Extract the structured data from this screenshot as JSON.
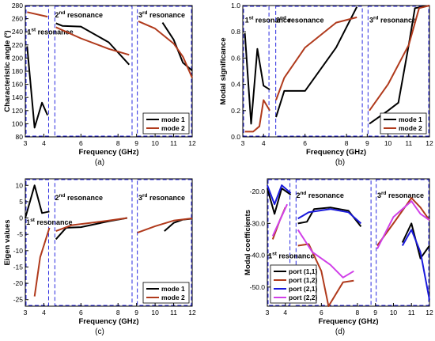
{
  "chart_data": [
    {
      "type": "line",
      "panel_label": "(a)",
      "xlabel": "Frequency (GHz)",
      "ylabel": "Characteristic angle (º)",
      "xlim": [
        3,
        12
      ],
      "ylim": [
        80,
        280
      ],
      "xticks": [
        3,
        4,
        6,
        8,
        9,
        10,
        11,
        12
      ],
      "yticks": [
        80,
        100,
        120,
        140,
        160,
        180,
        200,
        220,
        240,
        260,
        280
      ],
      "regions": [
        {
          "x0": 3.0,
          "x1": 4.3,
          "label": "1",
          "sup": "st",
          "rest": " resonance",
          "lx": 3.1,
          "ly": 236
        },
        {
          "x0": 4.55,
          "x1": 8.8,
          "label": "2",
          "sup": "nd",
          "rest": " resonance",
          "lx": 4.6,
          "ly": 262
        },
        {
          "x0": 9.0,
          "x1": 12.0,
          "label": "3",
          "sup": "rd",
          "rest": " resonance",
          "lx": 9.1,
          "ly": 262
        }
      ],
      "legend": "lower-right",
      "series": [
        {
          "name": "mode 1",
          "color": "#000000",
          "segments": [
            [
              [
                3.1,
                218
              ],
              [
                3.5,
                94
              ],
              [
                3.9,
                132
              ],
              [
                4.2,
                113
              ]
            ],
            [
              [
                4.65,
                253
              ],
              [
                5.0,
                249
              ],
              [
                6.0,
                248
              ],
              [
                7.5,
                224
              ],
              [
                8.6,
                190
              ]
            ],
            [
              [
                10.4,
                254
              ],
              [
                11.0,
                228
              ],
              [
                11.5,
                193
              ],
              [
                12.0,
                181
              ]
            ]
          ]
        },
        {
          "name": "mode 2",
          "color": "#b03a1c",
          "segments": [
            [
              [
                3.1,
                270
              ],
              [
                4.2,
                263
              ]
            ],
            [
              [
                4.65,
                247
              ],
              [
                6.0,
                230
              ],
              [
                7.5,
                214
              ],
              [
                8.6,
                205
              ]
            ],
            [
              [
                9.1,
                256
              ],
              [
                10.0,
                245
              ],
              [
                11.0,
                222
              ],
              [
                11.5,
                202
              ],
              [
                12.0,
                170
              ]
            ]
          ]
        }
      ]
    },
    {
      "type": "line",
      "panel_label": "(b)",
      "xlabel": "Frequency (GHz)",
      "ylabel": "Modal significance",
      "xlim": [
        3,
        12
      ],
      "ylim": [
        0,
        1
      ],
      "xticks": [
        3,
        4,
        6,
        8,
        9,
        10,
        11,
        12
      ],
      "yticks": [
        0.0,
        0.2,
        0.4,
        0.6,
        0.8,
        1.0
      ],
      "regions": [
        {
          "x0": 3.0,
          "x1": 4.3,
          "label": "1",
          "sup": "st",
          "rest": " resonance",
          "lx": 3.1,
          "ly": 0.87
        },
        {
          "x0": 4.55,
          "x1": 8.8,
          "label": "2",
          "sup": "nd",
          "rest": " resonance",
          "lx": 4.6,
          "ly": 0.87
        },
        {
          "x0": 9.0,
          "x1": 12.0,
          "label": "3",
          "sup": "rd",
          "rest": " resonance",
          "lx": 9.1,
          "ly": 0.87
        }
      ],
      "legend": "lower-right",
      "series": [
        {
          "name": "mode 1",
          "color": "#000000",
          "segments": [
            [
              [
                3.1,
                0.79
              ],
              [
                3.4,
                0.1
              ],
              [
                3.7,
                0.67
              ],
              [
                4.0,
                0.39
              ],
              [
                4.3,
                0.36
              ]
            ],
            [
              [
                4.6,
                0.15
              ],
              [
                5.0,
                0.35
              ],
              [
                6.0,
                0.35
              ],
              [
                7.5,
                0.68
              ],
              [
                8.5,
                0.99
              ]
            ],
            [
              [
                9.1,
                0.1
              ],
              [
                10.0,
                0.2
              ],
              [
                10.5,
                0.26
              ],
              [
                11.0,
                0.7
              ],
              [
                11.3,
                0.98
              ],
              [
                12.0,
                1.0
              ]
            ]
          ]
        },
        {
          "name": "mode 2",
          "color": "#b03a1c",
          "segments": [
            [
              [
                3.1,
                0.04
              ],
              [
                3.5,
                0.04
              ],
              [
                3.8,
                0.08
              ],
              [
                4.0,
                0.28
              ],
              [
                4.3,
                0.2
              ]
            ],
            [
              [
                4.6,
                0.28
              ],
              [
                5.0,
                0.45
              ],
              [
                6.0,
                0.68
              ],
              [
                7.5,
                0.87
              ],
              [
                8.5,
                0.91
              ]
            ],
            [
              [
                9.1,
                0.2
              ],
              [
                10.0,
                0.4
              ],
              [
                11.0,
                0.7
              ],
              [
                11.5,
                0.98
              ],
              [
                12.0,
                1.0
              ]
            ]
          ]
        }
      ]
    },
    {
      "type": "line",
      "panel_label": "(c)",
      "xlabel": "Frequency (GHz)",
      "ylabel": "Eigen values",
      "xlim": [
        3,
        12
      ],
      "ylim": [
        -27,
        12
      ],
      "xticks": [
        3,
        4,
        6,
        8,
        9,
        10,
        11,
        12
      ],
      "yticks": [
        -25,
        -20,
        -15,
        -10,
        -5,
        0,
        5,
        10
      ],
      "regions": [
        {
          "x0": 3.0,
          "x1": 4.3,
          "label": "1",
          "sup": "st",
          "rest": " resonance",
          "lx": 3.05,
          "ly": -2
        },
        {
          "x0": 4.55,
          "x1": 8.8,
          "label": "2",
          "sup": "nd",
          "rest": " resonance",
          "lx": 4.6,
          "ly": 5.5
        },
        {
          "x0": 9.0,
          "x1": 12.0,
          "label": "3",
          "sup": "rd",
          "rest": " resonance",
          "lx": 9.1,
          "ly": 5.5
        }
      ],
      "legend": "lower-right",
      "series": [
        {
          "name": "mode 1",
          "color": "#000000",
          "segments": [
            [
              [
                3.0,
                0.0
              ],
              [
                3.5,
                10.0
              ],
              [
                3.9,
                1.5
              ],
              [
                4.3,
                2.0
              ]
            ],
            [
              [
                4.65,
                -6.5
              ],
              [
                5.2,
                -3.0
              ],
              [
                6.0,
                -2.8
              ],
              [
                7.5,
                -1.0
              ],
              [
                8.5,
                0.0
              ]
            ],
            [
              [
                10.5,
                -4.0
              ],
              [
                11.0,
                -1.5
              ],
              [
                11.5,
                -0.5
              ],
              [
                12.0,
                -0.2
              ]
            ]
          ]
        },
        {
          "name": "mode 2",
          "color": "#b03a1c",
          "segments": [
            [
              [
                3.5,
                -24.0
              ],
              [
                3.8,
                -12.0
              ],
              [
                4.3,
                -3.0
              ]
            ],
            [
              [
                4.65,
                -4.0
              ],
              [
                5.5,
                -2.2
              ],
              [
                6.5,
                -1.5
              ],
              [
                7.5,
                -0.8
              ],
              [
                8.5,
                0.0
              ]
            ],
            [
              [
                9.05,
                -4.5
              ],
              [
                10.0,
                -2.5
              ],
              [
                11.0,
                -0.8
              ],
              [
                12.0,
                -0.1
              ]
            ]
          ]
        }
      ]
    },
    {
      "type": "line",
      "panel_label": "(d)",
      "xlabel": "Frequency (GHz)",
      "ylabel": "Modal coefficients",
      "xlim": [
        3,
        12
      ],
      "ylim": [
        -56,
        -16
      ],
      "xticks": [
        3,
        4,
        6,
        8,
        9,
        10,
        11,
        12
      ],
      "yticks": [
        -50,
        -40,
        -30,
        -20
      ],
      "regions": [
        {
          "x0": 3.0,
          "x1": 4.3,
          "label": "1",
          "sup": "st",
          "rest": " resonance",
          "lx": 3.05,
          "ly": -41
        },
        {
          "x0": 4.55,
          "x1": 8.8,
          "label": "2",
          "sup": "nd",
          "rest": " resonance",
          "lx": 4.6,
          "ly": -22
        },
        {
          "x0": 9.0,
          "x1": 12.0,
          "label": "3",
          "sup": "rd",
          "rest": " resonance",
          "lx": 9.1,
          "ly": -22
        }
      ],
      "legend": "lower-left",
      "series": [
        {
          "name": "port (1,1)",
          "color": "#000000",
          "segments": [
            [
              [
                3.0,
                -19.0
              ],
              [
                3.4,
                -27.0
              ],
              [
                3.8,
                -19.0
              ],
              [
                4.3,
                -21.0
              ]
            ],
            [
              [
                4.7,
                -30.0
              ],
              [
                5.2,
                -29.5
              ],
              [
                5.6,
                -25.5
              ],
              [
                6.5,
                -25.0
              ],
              [
                7.5,
                -26.0
              ],
              [
                8.2,
                -31.0
              ]
            ],
            [
              [
                10.5,
                -36.0
              ],
              [
                11.0,
                -30.0
              ],
              [
                11.5,
                -41.0
              ],
              [
                12.0,
                -37.0
              ]
            ]
          ]
        },
        {
          "name": "port (1,2)",
          "color": "#b03a1c",
          "segments": [
            [
              [
                3.3,
                -35.0
              ],
              [
                3.7,
                -29.0
              ],
              [
                4.0,
                -25.0
              ]
            ],
            [
              [
                4.7,
                -37.0
              ],
              [
                5.3,
                -36.5
              ],
              [
                6.0,
                -45.0
              ],
              [
                6.4,
                -56.0
              ],
              [
                7.2,
                -48.5
              ],
              [
                7.8,
                -48.0
              ]
            ],
            [
              [
                9.1,
                -37.0
              ],
              [
                10.0,
                -30.0
              ],
              [
                11.0,
                -22.0
              ],
              [
                11.5,
                -25.0
              ],
              [
                12.0,
                -29.0
              ]
            ]
          ]
        },
        {
          "name": "port (2,1)",
          "color": "#1a1adc",
          "segments": [
            [
              [
                3.0,
                -18.0
              ],
              [
                3.4,
                -24.0
              ],
              [
                3.8,
                -18.0
              ],
              [
                4.3,
                -20.5
              ]
            ],
            [
              [
                4.7,
                -28.5
              ],
              [
                5.3,
                -26.5
              ],
              [
                6.5,
                -25.5
              ],
              [
                7.5,
                -26.5
              ],
              [
                8.2,
                -30.0
              ]
            ],
            [
              [
                10.5,
                -37.0
              ],
              [
                11.0,
                -32.0
              ],
              [
                11.5,
                -39.0
              ],
              [
                12.0,
                -54.0
              ]
            ]
          ]
        },
        {
          "name": "port (2,2)",
          "color": "#d040e8",
          "segments": [
            [
              [
                3.3,
                -34.0
              ],
              [
                3.7,
                -29.0
              ],
              [
                4.1,
                -24.0
              ]
            ],
            [
              [
                4.7,
                -32.0
              ],
              [
                5.5,
                -39.0
              ],
              [
                6.5,
                -43.0
              ],
              [
                7.2,
                -47.0
              ],
              [
                7.8,
                -45.0
              ]
            ],
            [
              [
                9.1,
                -38.0
              ],
              [
                10.0,
                -28.0
              ],
              [
                11.0,
                -23.0
              ],
              [
                11.5,
                -27.0
              ],
              [
                12.0,
                -29.0
              ]
            ]
          ]
        }
      ]
    }
  ]
}
